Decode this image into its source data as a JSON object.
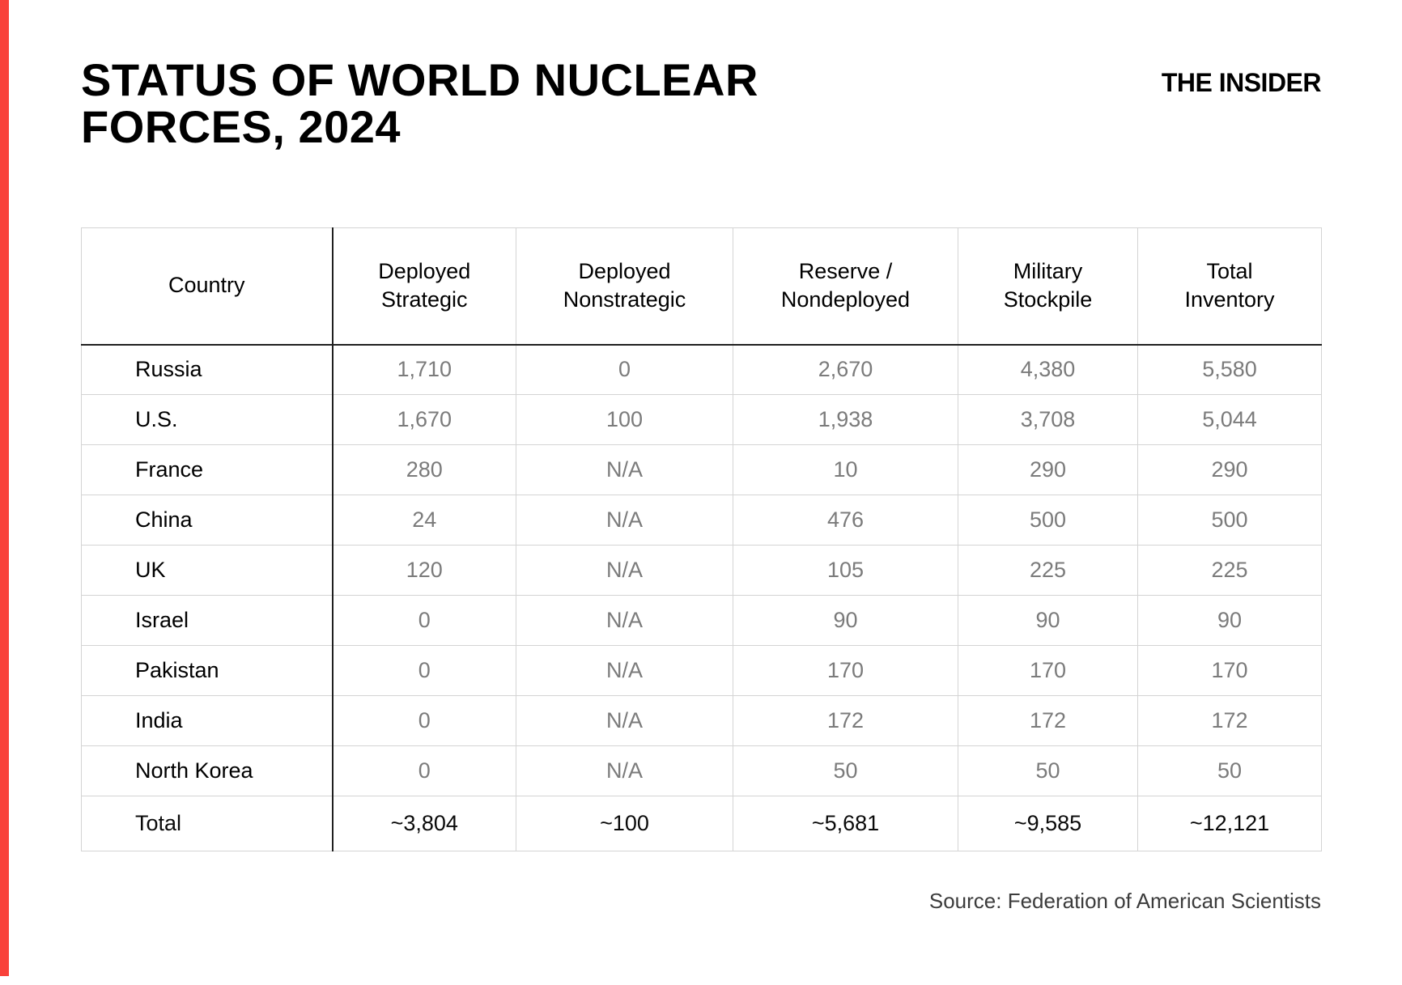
{
  "title": {
    "line1": "STATUS OF WORLD NUCLEAR",
    "line2": "FORCES, 2024"
  },
  "brand": "THE INSIDER",
  "source": "Source: Federation of American Scientists",
  "colors": {
    "accent_red": "#F9423A",
    "value_gray": "#7B7B7B",
    "dark_line": "#1F1F1F",
    "light_line": "#D4D4D4"
  },
  "table": {
    "columns": [
      "Country",
      "Deployed Strategic",
      "Deployed Nonstrategic",
      "Reserve / Nondeployed",
      "Military Stockpile",
      "Total Inventory"
    ],
    "rows": [
      [
        "Russia",
        "1,710",
        "0",
        "2,670",
        "4,380",
        "5,580"
      ],
      [
        "U.S.",
        "1,670",
        "100",
        "1,938",
        "3,708",
        "5,044"
      ],
      [
        "France",
        "280",
        "N/A",
        "10",
        "290",
        "290"
      ],
      [
        "China",
        "24",
        "N/A",
        "476",
        "500",
        "500"
      ],
      [
        "UK",
        "120",
        "N/A",
        "105",
        "225",
        "225"
      ],
      [
        "Israel",
        "0",
        "N/A",
        "90",
        "90",
        "90"
      ],
      [
        "Pakistan",
        "0",
        "N/A",
        "170",
        "170",
        "170"
      ],
      [
        "India",
        "0",
        "N/A",
        "172",
        "172",
        "172"
      ],
      [
        "North Korea",
        "0",
        "N/A",
        "50",
        "50",
        "50"
      ]
    ],
    "total_row": [
      "Total",
      "~3,804",
      "~100",
      "~5,681",
      "~9,585",
      "~12,121"
    ]
  },
  "chart_data": {
    "type": "table",
    "title": "STATUS OF WORLD NUCLEAR FORCES, 2024",
    "columns": [
      "Country",
      "Deployed Strategic",
      "Deployed Nonstrategic",
      "Reserve / Nondeployed",
      "Military Stockpile",
      "Total Inventory"
    ],
    "rows": [
      {
        "country": "Russia",
        "deployed_strategic": "1,710",
        "deployed_nonstrategic": "0",
        "reserve_nondeployed": "2,670",
        "military_stockpile": "4,380",
        "total_inventory": "5,580"
      },
      {
        "country": "U.S.",
        "deployed_strategic": "1,670",
        "deployed_nonstrategic": "100",
        "reserve_nondeployed": "1,938",
        "military_stockpile": "3,708",
        "total_inventory": "5,044"
      },
      {
        "country": "France",
        "deployed_strategic": "280",
        "deployed_nonstrategic": "N/A",
        "reserve_nondeployed": "10",
        "military_stockpile": "290",
        "total_inventory": "290"
      },
      {
        "country": "China",
        "deployed_strategic": "24",
        "deployed_nonstrategic": "N/A",
        "reserve_nondeployed": "476",
        "military_stockpile": "500",
        "total_inventory": "500"
      },
      {
        "country": "UK",
        "deployed_strategic": "120",
        "deployed_nonstrategic": "N/A",
        "reserve_nondeployed": "105",
        "military_stockpile": "225",
        "total_inventory": "225"
      },
      {
        "country": "Israel",
        "deployed_strategic": "0",
        "deployed_nonstrategic": "N/A",
        "reserve_nondeployed": "90",
        "military_stockpile": "90",
        "total_inventory": "90"
      },
      {
        "country": "Pakistan",
        "deployed_strategic": "0",
        "deployed_nonstrategic": "N/A",
        "reserve_nondeployed": "170",
        "military_stockpile": "170",
        "total_inventory": "170"
      },
      {
        "country": "India",
        "deployed_strategic": "0",
        "deployed_nonstrategic": "N/A",
        "reserve_nondeployed": "172",
        "military_stockpile": "172",
        "total_inventory": "172"
      },
      {
        "country": "North Korea",
        "deployed_strategic": "0",
        "deployed_nonstrategic": "N/A",
        "reserve_nondeployed": "50",
        "military_stockpile": "50",
        "total_inventory": "50"
      },
      {
        "country": "Total",
        "deployed_strategic": "~3,804",
        "deployed_nonstrategic": "~100",
        "reserve_nondeployed": "~5,681",
        "military_stockpile": "~9,585",
        "total_inventory": "~12,121"
      }
    ],
    "source": "Source: Federation of American Scientists"
  }
}
